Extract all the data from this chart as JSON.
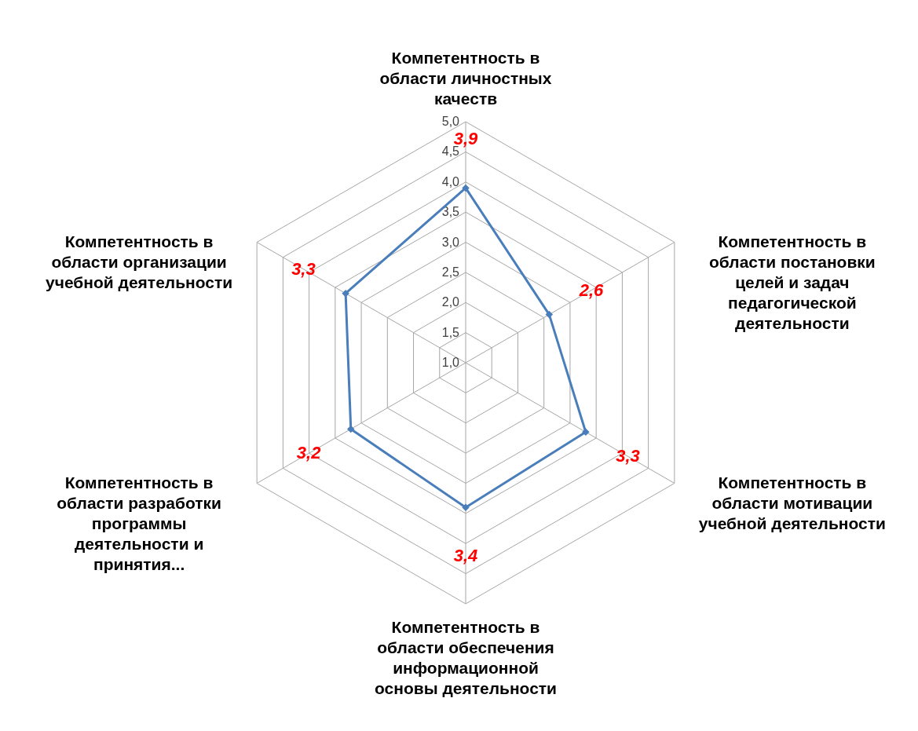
{
  "chart_data": {
    "type": "radar",
    "categories": [
      "Компетентность в области личностных качеств",
      "Компетентность в области постановки целей и задач педагогической деятельности",
      "Компетентность в области мотивации учебной деятельности",
      "Компетентность в области обеспечения информационной основы деятельности",
      "Компетентность в области разработки программы деятельности и принятия...",
      "Компетентность в области организации учебной деятельности"
    ],
    "series": [
      {
        "color": "#4a7ebb",
        "values": [
          3.9,
          2.6,
          3.3,
          3.4,
          3.2,
          3.3
        ],
        "value_labels": [
          "3,9",
          "2,6",
          "3,3",
          "3,4",
          "3,2",
          "3,3"
        ]
      }
    ],
    "ylim": [
      1,
      5
    ],
    "yticks": [
      {
        "value": 1,
        "label": "1,0"
      },
      {
        "value": 1.5,
        "label": "1,5"
      },
      {
        "value": 2,
        "label": "2,0"
      },
      {
        "value": 2.5,
        "label": "2,5"
      },
      {
        "value": 3,
        "label": "3,0"
      },
      {
        "value": 3.5,
        "label": "3,5"
      },
      {
        "value": 4,
        "label": "4,0"
      },
      {
        "value": 4.5,
        "label": "4,5"
      },
      {
        "value": 5,
        "label": "5,0"
      }
    ],
    "grid": true,
    "marker": "diamond",
    "line_style": "solid"
  }
}
